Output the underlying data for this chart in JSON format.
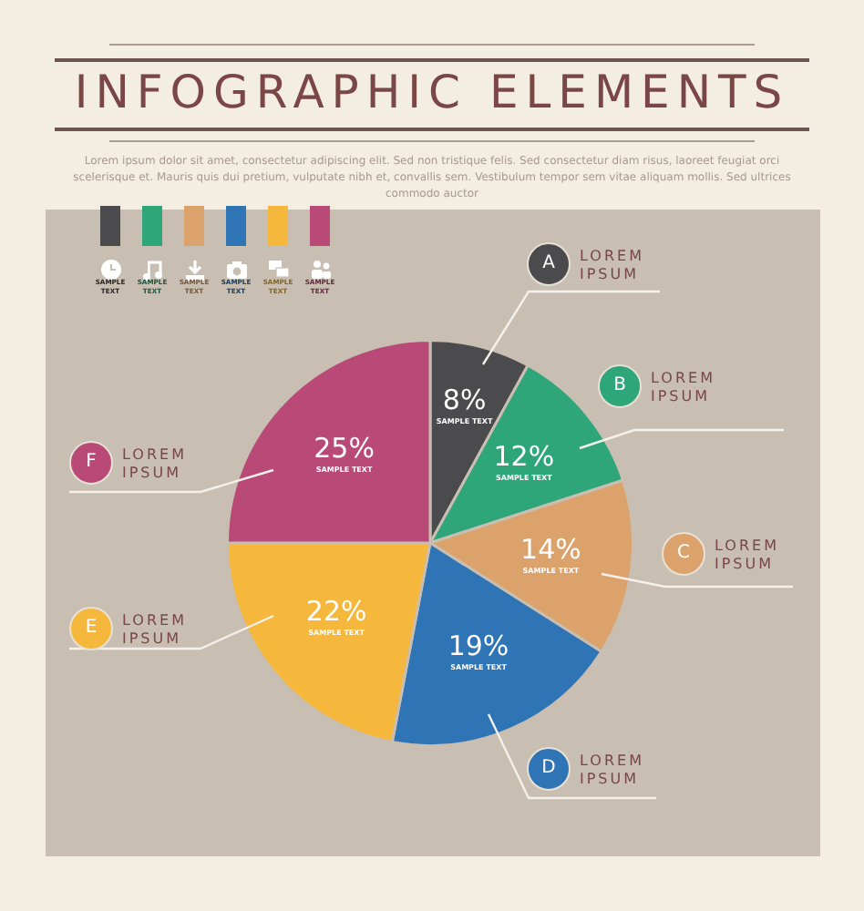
{
  "chart_data": {
    "type": "pie",
    "title": "INFOGRAPHIC ELEMENTS",
    "subtitle": "Lorem ipsum dolor sit amet, consectetur adipiscing elit. Sed non tristique felis. Sed consectetur diam risus, laoreet feugiat orci scelerisque et. Mauris quis dui pretium, vulputate nibh et, convallis sem. Vestibulum tempor sem vitae aliquam mollis. Sed ultrices commodo auctor",
    "categories": [
      "A",
      "B",
      "C",
      "D",
      "E",
      "F"
    ],
    "values": [
      8,
      12,
      14,
      19,
      22,
      25
    ],
    "value_labels": [
      "8%",
      "12%",
      "14%",
      "19%",
      "22%",
      "25%"
    ],
    "colors": [
      "#4b4a4c",
      "#2fa57a",
      "#dca26c",
      "#2f74b5",
      "#f5b83d",
      "#b94a78"
    ],
    "annotations": [
      "LOREM IPSUM",
      "LOREM IPSUM",
      "LOREM IPSUM",
      "LOREM IPSUM",
      "LOREM IPSUM",
      "LOREM IPSUM",
      "SAMPLE TEXT",
      "SAMPLE TEXT",
      "SAMPLE TEXT",
      "SAMPLE TEXT",
      "SAMPLE TEXT",
      "SAMPLE TEXT",
      "SAMPLE TEXT",
      "SAMPLE TEXT",
      "SAMPLE TEXT",
      "SAMPLE TEXT",
      "SAMPLE TEXT",
      "SAMPLE TEXT"
    ]
  }
}
